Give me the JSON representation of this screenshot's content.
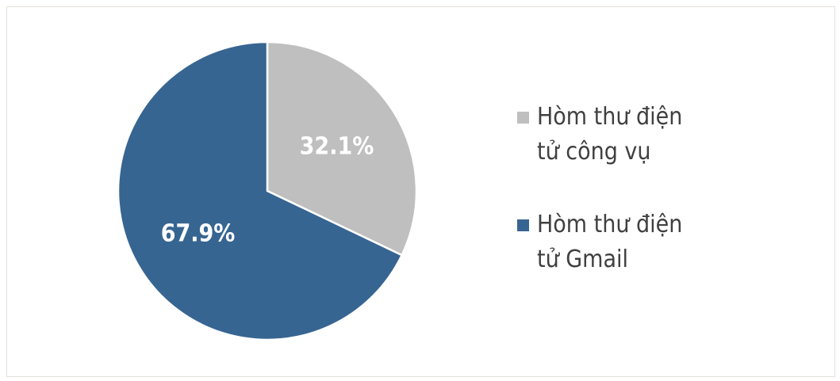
{
  "chart_data": {
    "type": "pie",
    "categories": [
      "Hòm thư điện tử công vụ",
      "Hòm thư điện tử Gmail"
    ],
    "values": [
      32.1,
      67.9
    ],
    "value_labels": [
      "32.1%",
      "67.9%"
    ],
    "colors": [
      "#bfbfbf",
      "#376592"
    ],
    "legend": "right"
  }
}
